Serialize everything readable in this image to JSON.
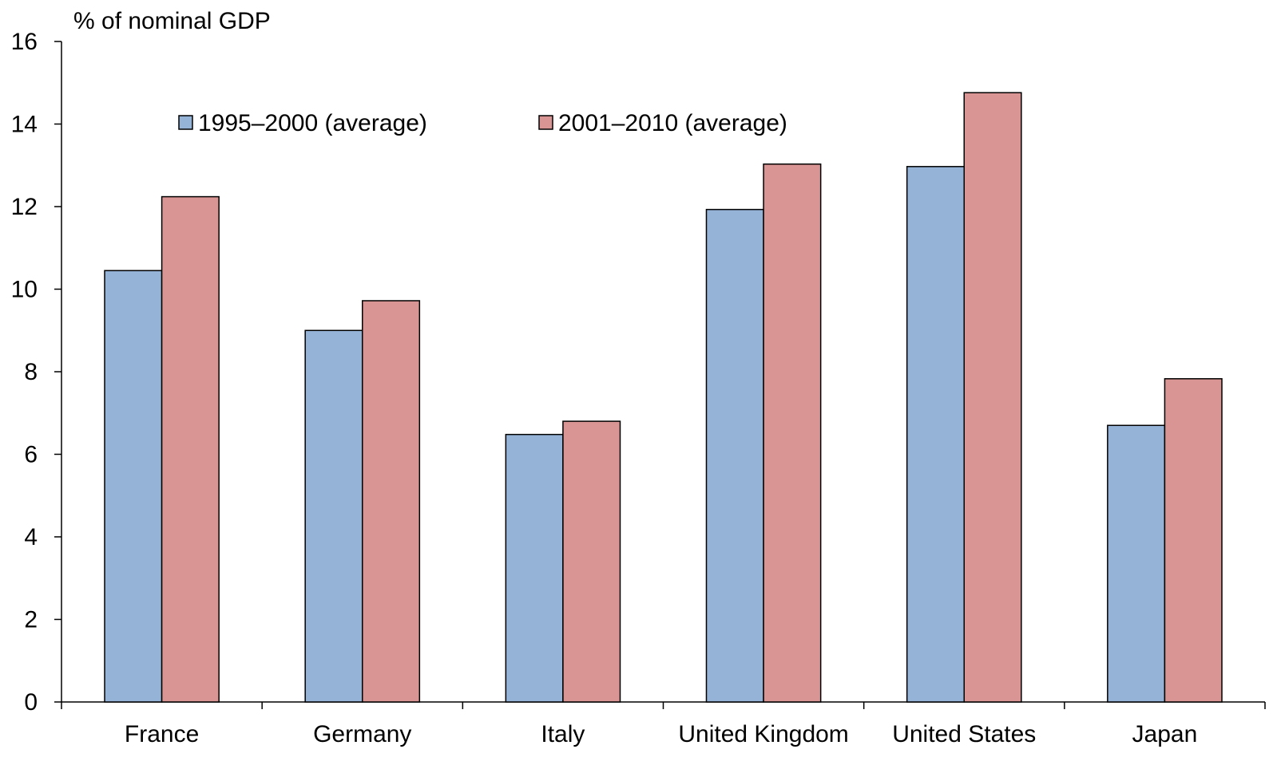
{
  "chart_data": {
    "type": "bar",
    "ylabel": "% of nominal GDP",
    "ylim": [
      0,
      16
    ],
    "yticks": [
      "0",
      "2",
      "4",
      "6",
      "8",
      "10",
      "12",
      "14",
      "16"
    ],
    "categories": [
      "France",
      "Germany",
      "Italy",
      "United Kingdom",
      "United States",
      "Japan"
    ],
    "series": [
      {
        "name": "1995–2000 (average)",
        "color": "#95B3D7",
        "values": [
          10.45,
          9.0,
          6.48,
          11.93,
          12.97,
          6.7
        ]
      },
      {
        "name": "2001–2010 (average)",
        "color": "#D99594",
        "values": [
          12.24,
          9.72,
          6.8,
          13.03,
          14.76,
          7.83
        ]
      }
    ],
    "legend_position": "top-left",
    "grid": false
  }
}
